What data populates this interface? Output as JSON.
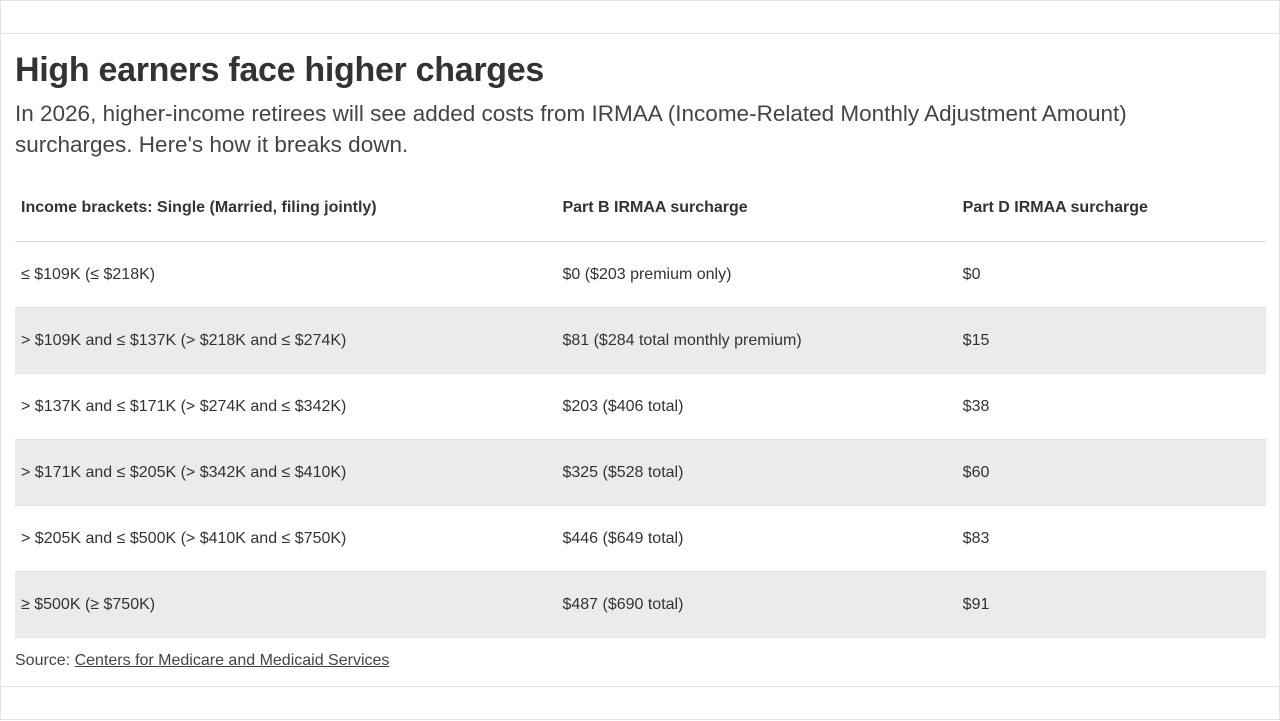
{
  "header": {
    "title": "High earners face higher charges",
    "subtitle": "In 2026, higher-income retirees will see added costs from IRMAA (Income-Related Monthly Adjustment Amount) surcharges. Here's how it breaks down."
  },
  "table": {
    "columns": [
      "Income brackets: Single (Married, filing jointly)",
      "Part B IRMAA surcharge",
      "Part D IRMAA surcharge"
    ],
    "rows": [
      [
        "≤ $109K (≤ $218K)",
        "$0 ($203 premium only)",
        "$0"
      ],
      [
        "> $109K and ≤ $137K (> $218K and ≤ $274K)",
        "$81 ($284 total monthly premium)",
        "$15"
      ],
      [
        "> $137K and ≤ $171K (> $274K and ≤ $342K)",
        "$203 ($406 total)",
        "$38"
      ],
      [
        "> $171K and ≤ $205K (> $342K and ≤ $410K)",
        "$325 ($528 total)",
        "$60"
      ],
      [
        "> $205K and ≤ $500K (> $410K and ≤ $750K)",
        "$446 ($649 total)",
        "$83"
      ],
      [
        "≥ $500K (≥ $750K)",
        "$487 ($690 total)",
        "$91"
      ]
    ]
  },
  "source": {
    "prefix": "Source: ",
    "link_text": "Centers for Medicare and Medicaid Services"
  },
  "colors": {
    "stripe": "#ebebeb",
    "text": "#333333",
    "border": "#dddddd"
  }
}
